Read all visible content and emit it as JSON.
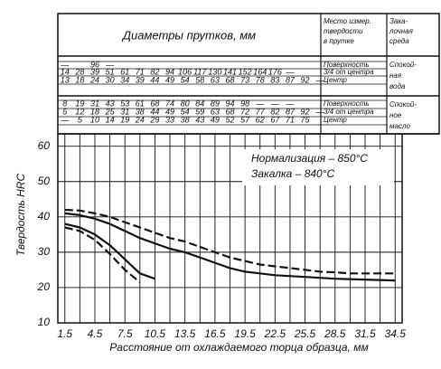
{
  "table": {
    "title": "Диаметры прутков, мм",
    "measure_header": [
      "Место измер.",
      "твердости",
      "в прутке"
    ],
    "medium_header": [
      "Зака-",
      "лочная",
      "среда"
    ],
    "groups": [
      {
        "medium": [
          "Спокой-",
          "ная",
          "вода"
        ],
        "rows": [
          {
            "location": "Поверхность",
            "values": [
              "—",
              "",
              96,
              "—"
            ]
          },
          {
            "location": "3/4 от центра",
            "values": [
              14,
              28,
              39,
              51,
              61,
              71,
              82,
              94,
              106,
              117,
              130,
              141,
              152,
              164,
              176,
              "—"
            ]
          },
          {
            "location": "Центр",
            "values": [
              13,
              18,
              24,
              30,
              34,
              39,
              44,
              49,
              54,
              58,
              63,
              68,
              73,
              78,
              83,
              87,
              92,
              "—"
            ]
          }
        ]
      },
      {
        "medium": [
          "Спокой-",
          "ное",
          "масло"
        ],
        "rows": [
          {
            "location": "Поверхность",
            "values": [
              8,
              19,
              31,
              43,
              53,
              61,
              68,
              74,
              80,
              84,
              89,
              94,
              98,
              "—",
              "—",
              "—"
            ]
          },
          {
            "location": "3/4 от центра",
            "values": [
              5,
              12,
              18,
              25,
              31,
              38,
              44,
              49,
              54,
              59,
              63,
              68,
              72,
              77,
              82,
              87,
              92,
              "—"
            ]
          },
          {
            "location": "Центр",
            "values": [
              "—",
              5,
              10,
              14,
              19,
              24,
              29,
              33,
              38,
              43,
              49,
              52,
              57,
              62,
              67,
              71,
              75
            ]
          }
        ]
      }
    ]
  },
  "chart_data": {
    "type": "line",
    "y_label": "Твердость HRC",
    "x_label": "Расстояние от охлаждаемого торца образца, мм",
    "annotations": [
      "Нормализация – 850°C",
      "Закалка      – 840°C"
    ],
    "xlim": [
      0.8,
      35.2
    ],
    "ylim": [
      10,
      63.5
    ],
    "xticks": [
      1.5,
      4.5,
      7.5,
      10.5,
      13.5,
      16.5,
      19.5,
      22.5,
      25.5,
      28.5,
      31.5,
      34.5
    ],
    "yticks": [
      10,
      20,
      30,
      40,
      50,
      60
    ],
    "grid": true,
    "series": [
      {
        "color": "#111",
        "dash": true,
        "x": [
          1.5,
          3,
          4.5,
          6,
          7.5,
          9,
          10.5,
          12,
          13.5,
          15,
          16.5,
          18,
          19.5,
          21,
          22.5,
          24,
          25.5,
          27,
          28.5,
          30,
          34.5
        ],
        "values": [
          42,
          41.8,
          41,
          40,
          38.5,
          37,
          35.5,
          34,
          33,
          31.5,
          30,
          28.5,
          27.5,
          26.5,
          26,
          25.5,
          25,
          24.5,
          24.3,
          24,
          24
        ]
      },
      {
        "color": "#111",
        "dash": false,
        "x": [
          1.5,
          3,
          4.5,
          6,
          7.5,
          9,
          10.5,
          12,
          13.5,
          15,
          16.5,
          18,
          19.5,
          21,
          22.5,
          25.5,
          28.5,
          34.5
        ],
        "values": [
          41,
          40.5,
          39.5,
          38,
          36,
          34,
          32.5,
          31,
          30,
          28.5,
          27,
          25.5,
          24.5,
          24,
          23.5,
          23,
          22.5,
          22
        ]
      },
      {
        "color": "#111",
        "dash": false,
        "x": [
          1.5,
          3,
          4.5,
          6,
          7.5,
          9,
          10.5
        ],
        "values": [
          38,
          37,
          35,
          32,
          28,
          24,
          22.5
        ]
      },
      {
        "color": "#111",
        "dash": true,
        "x": [
          1.5,
          3,
          4.5,
          6,
          7.5,
          9
        ],
        "values": [
          37,
          36,
          33.5,
          29.5,
          25,
          21.5
        ]
      }
    ]
  }
}
